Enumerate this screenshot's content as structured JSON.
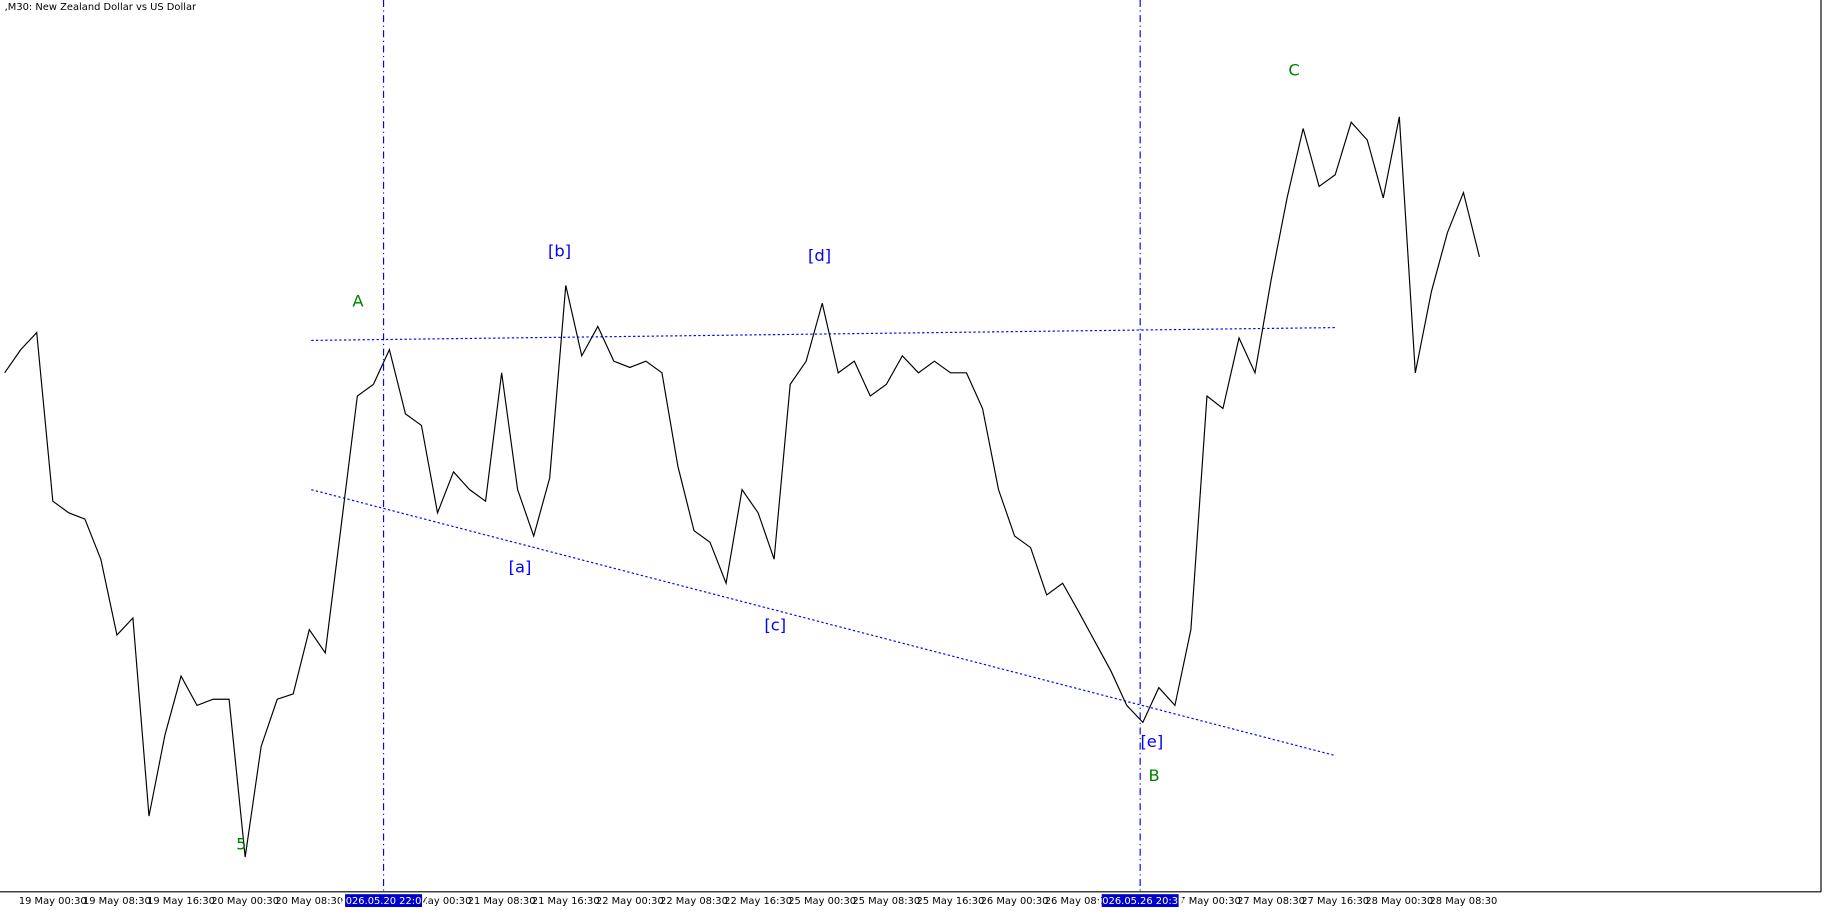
{
  "chart_data": {
    "type": "line",
    "title": ",M30:  New Zealand Dollar vs US Dollar",
    "color": "#000000",
    "ylim": [
      0,
      100
    ],
    "categories": [
      null,
      null,
      null,
      "19 May 00:30",
      null,
      null,
      null,
      "19 May 08:30",
      null,
      null,
      null,
      "19 May 16:30",
      null,
      null,
      null,
      "20 May 00:30",
      null,
      null,
      null,
      "20 May 08:30",
      null,
      null,
      null,
      null,
      null,
      null,
      null,
      "21 May 00:30",
      null,
      null,
      null,
      "21 May 08:30",
      null,
      null,
      null,
      "21 May 16:30",
      null,
      null,
      null,
      "22 May 00:30",
      null,
      null,
      null,
      "22 May 08:30",
      null,
      null,
      null,
      "22 May 16:30",
      null,
      null,
      null,
      "25 May 00:30",
      null,
      null,
      null,
      "25 May 08:30",
      null,
      null,
      null,
      "25 May 16:30",
      null,
      null,
      null,
      "26 May 00:30",
      null,
      null,
      null,
      "26 May 08:30",
      null,
      null,
      null,
      null,
      null,
      null,
      null,
      "27 May 00:30",
      null,
      null,
      null,
      "27 May 08:30",
      null,
      null,
      null,
      "27 May 16:30",
      null,
      null,
      null,
      "28 May 00:30",
      null,
      null,
      null,
      "28 May 08:30",
      null
    ],
    "values": [
      58.2,
      60.8,
      62.7,
      43.8,
      42.5,
      41.8,
      37.3,
      28.8,
      30.7,
      8.5,
      17.6,
      24.2,
      20.9,
      21.6,
      21.6,
      3.9,
      16.3,
      21.6,
      22.2,
      29.4,
      26.8,
      41.2,
      55.6,
      56.9,
      60.8,
      53.6,
      52.3,
      42.5,
      47.1,
      45.1,
      43.8,
      58.2,
      45.1,
      39.9,
      46.4,
      68.0,
      60.1,
      63.4,
      59.5,
      58.8,
      59.5,
      58.2,
      47.7,
      40.5,
      39.2,
      34.6,
      45.1,
      42.5,
      37.3,
      56.9,
      59.5,
      66.0,
      58.2,
      59.5,
      55.6,
      56.9,
      60.1,
      58.2,
      59.5,
      58.2,
      58.2,
      54.2,
      45.1,
      39.9,
      38.6,
      33.3,
      34.6,
      31.4,
      28.1,
      24.8,
      20.9,
      19.0,
      22.9,
      20.9,
      29.4,
      55.6,
      54.2,
      62.1,
      58.2,
      68.6,
      77.8,
      85.6,
      79.1,
      80.4,
      86.3,
      84.3,
      77.8,
      86.9,
      58.2,
      67.3,
      73.9,
      78.4,
      71.2
    ],
    "vlines": [
      "2026.05.20 22:00",
      "2026.05.26 20:30"
    ],
    "annotations": [
      {
        "text": "A",
        "color": "#008000"
      },
      {
        "text": "[b]",
        "color": "#0000ff"
      },
      {
        "text": "[d]",
        "color": "#0000ff"
      },
      {
        "text": "C",
        "color": "#008000"
      },
      {
        "text": "[a]",
        "color": "#0000ff"
      },
      {
        "text": "[c]",
        "color": "#0000ff"
      },
      {
        "text": "[e]",
        "color": "#0000ff"
      },
      {
        "text": "B",
        "color": "#008000"
      },
      {
        "text": "5",
        "color": "#008000"
      }
    ]
  }
}
